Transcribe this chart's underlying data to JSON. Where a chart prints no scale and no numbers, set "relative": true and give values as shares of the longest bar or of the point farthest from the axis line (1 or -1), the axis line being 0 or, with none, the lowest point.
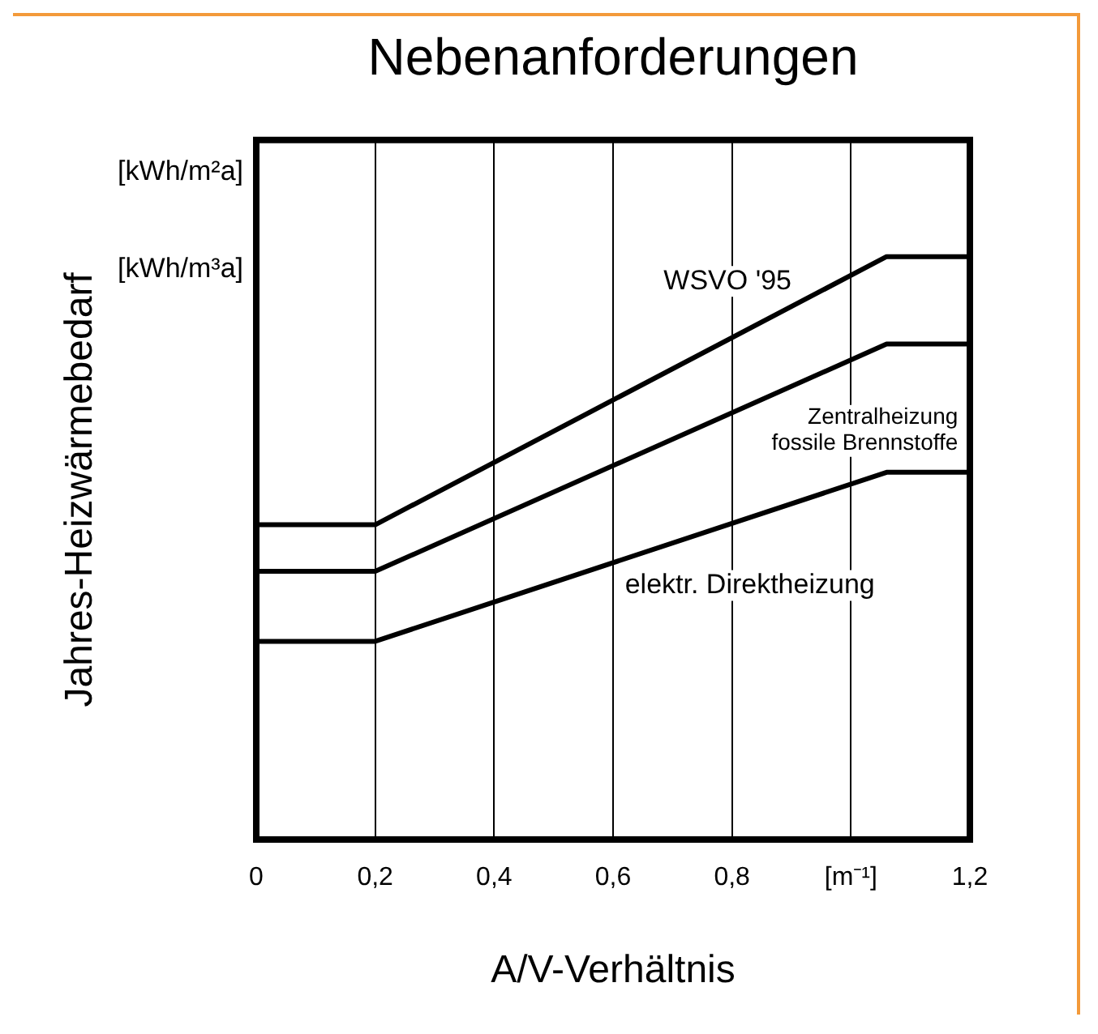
{
  "chart_data": {
    "type": "line",
    "title": "Nebenanforderungen",
    "xlabel": "A/V-Verhältnis",
    "ylabel": "Jahres-Heizwärmebedarf",
    "relative": true,
    "xlim": [
      0,
      1.2
    ],
    "xticks": [
      0,
      {
        "value": 0.2,
        "label": "0,2"
      },
      {
        "value": 0.4,
        "label": "0,4"
      },
      {
        "value": 0.6,
        "label": "0,6"
      },
      {
        "value": 0.8,
        "label": "0,8"
      },
      {
        "value": 1.0,
        "label": "[m⁻¹]"
      },
      {
        "value": 1.2,
        "label": "1,2"
      }
    ],
    "grid": "x",
    "legend": false,
    "marker": "none",
    "line_style": "solid",
    "annotations": [
      "[kWh/m²a]",
      "[kWh/m³a]"
    ],
    "series": [
      {
        "name": "WSVO '95",
        "color": "#000000",
        "x": [
          0,
          0.2,
          1.06,
          1.2
        ],
        "values": [
          0.54,
          0.54,
          1,
          1
        ]
      },
      {
        "name": "Zentralheizung fossile Brennstoffe",
        "color": "#000000",
        "x": [
          0,
          0.2,
          1.06,
          1.2
        ],
        "values": [
          0.46,
          0.46,
          0.85,
          0.85
        ]
      },
      {
        "name": "elektr. Direktheizung",
        "color": "#000000",
        "x": [
          0,
          0.2,
          1.06,
          1.2
        ],
        "values": [
          0.34,
          0.34,
          0.63,
          0.63
        ]
      }
    ]
  }
}
